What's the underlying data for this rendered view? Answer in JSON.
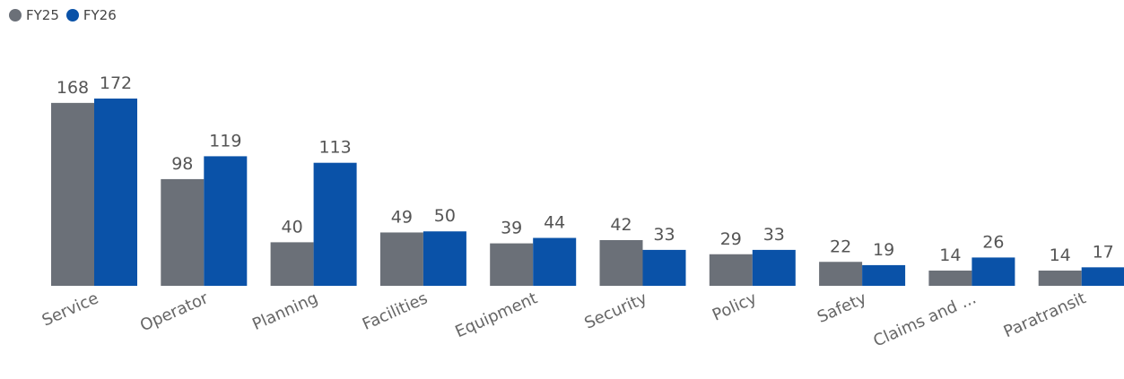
{
  "chart_data": {
    "type": "bar",
    "categories": [
      "Service",
      "Operator",
      "Planning",
      "Facilities",
      "Equipment",
      "Security",
      "Policy",
      "Safety",
      "Claims and ...",
      "Paratransit"
    ],
    "series": [
      {
        "name": "FY25",
        "color": "#6b7078",
        "values": [
          168,
          98,
          40,
          49,
          39,
          42,
          29,
          22,
          14,
          14
        ]
      },
      {
        "name": "FY26",
        "color": "#0a52a8",
        "values": [
          172,
          119,
          113,
          50,
          44,
          33,
          33,
          19,
          26,
          17
        ]
      }
    ],
    "legend_position": "top-left",
    "grid": false,
    "ylim": [
      0,
      172
    ]
  }
}
